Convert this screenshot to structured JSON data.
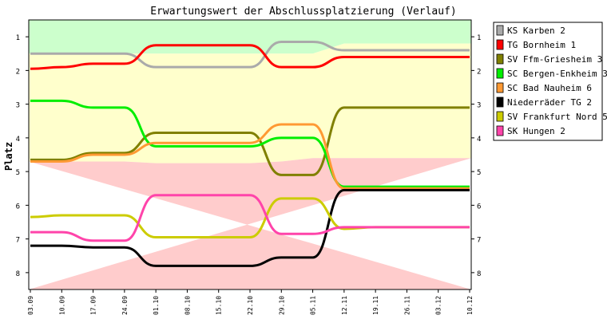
{
  "chart_data": {
    "type": "line",
    "title": "Erwartungswert der Abschlussplatzierung (Verlauf)",
    "ylabel": "Platz",
    "xlabel": "",
    "ylim": [
      0.5,
      8.5
    ],
    "y_inverted": true,
    "y_ticks": [
      "1",
      "2",
      "3",
      "4",
      "5",
      "6",
      "7",
      "8"
    ],
    "categories": [
      "03.09",
      "10.09",
      "17.09",
      "24.09",
      "01.10",
      "08.10",
      "15.10",
      "22.10",
      "29.10",
      "05.11",
      "12.11",
      "19.11",
      "26.11",
      "03.12",
      "10.12"
    ],
    "bands": [
      {
        "name": "aufstieg",
        "color": "#ccffcc",
        "boundary": [
          1.5,
          1.5,
          1.5,
          1.5,
          1.5,
          1.5,
          1.5,
          1.5,
          1.5,
          1.5,
          1.2,
          1.2,
          1.2,
          1.2,
          1.2
        ]
      },
      {
        "name": "mittelfeld",
        "color": "#ffffcc",
        "boundary": [
          4.7,
          4.7,
          4.7,
          4.7,
          4.75,
          4.75,
          4.75,
          4.75,
          4.7,
          4.6,
          4.6,
          4.6,
          4.6,
          4.6,
          4.6
        ]
      },
      {
        "name": "abstieg",
        "color": "#ffcccc"
      }
    ],
    "legend_position": "right",
    "series": [
      {
        "name": "KS Karben 2",
        "color": "#aaaaaa",
        "values": [
          1.5,
          1.5,
          1.5,
          1.5,
          1.9,
          1.9,
          1.9,
          1.9,
          1.15,
          1.15,
          1.4,
          1.4,
          1.4,
          1.4,
          1.4
        ]
      },
      {
        "name": "TG Bornheim 1",
        "color": "#ff0000",
        "values": [
          1.95,
          1.9,
          1.8,
          1.8,
          1.25,
          1.25,
          1.25,
          1.25,
          1.9,
          1.9,
          1.6,
          1.6,
          1.6,
          1.6,
          1.6
        ]
      },
      {
        "name": "SV Ffm-Griesheim 3",
        "color": "#808000",
        "values": [
          4.65,
          4.65,
          4.45,
          4.45,
          3.85,
          3.85,
          3.85,
          3.85,
          5.1,
          5.1,
          3.1,
          3.1,
          3.1,
          3.1,
          3.1
        ]
      },
      {
        "name": "SC Bergen-Enkheim 3",
        "color": "#00ee00",
        "values": [
          2.9,
          2.9,
          3.1,
          3.1,
          4.25,
          4.25,
          4.25,
          4.25,
          4.0,
          4.0,
          5.45,
          5.45,
          5.45,
          5.45,
          5.45
        ]
      },
      {
        "name": "SC Bad Nauheim 6",
        "color": "#ff9933",
        "values": [
          4.7,
          4.7,
          4.5,
          4.5,
          4.15,
          4.15,
          4.15,
          4.15,
          3.6,
          3.6,
          5.5,
          5.5,
          5.5,
          5.5,
          5.5
        ]
      },
      {
        "name": "Niederräder TG 2",
        "color": "#000000",
        "values": [
          7.2,
          7.2,
          7.25,
          7.25,
          7.8,
          7.8,
          7.8,
          7.8,
          7.55,
          7.55,
          5.55,
          5.55,
          5.55,
          5.55,
          5.55
        ]
      },
      {
        "name": "SV Frankfurt Nord 5",
        "color": "#cccc00",
        "values": [
          6.35,
          6.3,
          6.3,
          6.3,
          6.95,
          6.95,
          6.95,
          6.95,
          5.8,
          5.8,
          6.7,
          6.65,
          6.65,
          6.65,
          6.65
        ]
      },
      {
        "name": "SK Hungen 2",
        "color": "#ff44aa",
        "values": [
          6.8,
          6.8,
          7.05,
          7.05,
          5.7,
          5.7,
          5.7,
          5.7,
          6.85,
          6.85,
          6.65,
          6.65,
          6.65,
          6.65,
          6.65
        ]
      }
    ]
  }
}
